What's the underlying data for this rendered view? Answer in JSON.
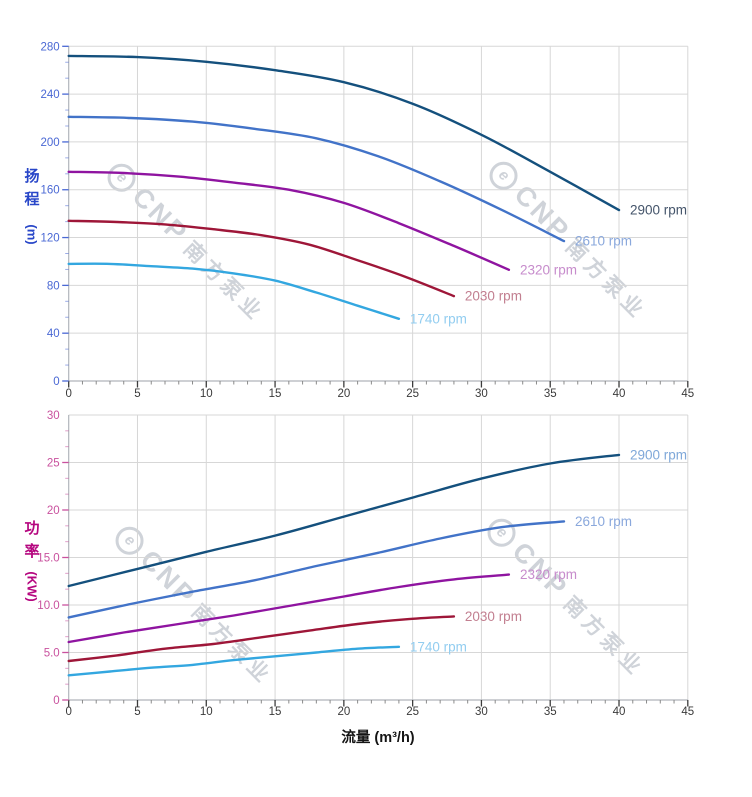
{
  "watermark": {
    "logo_glyph": "e",
    "brand": "CNP",
    "company": "南方泵业",
    "color": "#cfd3d9"
  },
  "chart_data": [
    {
      "type": "line",
      "title": "",
      "ylabel_cn": "扬程",
      "ylabel_unit": "(m)",
      "xlim": [
        0,
        45
      ],
      "ylim": [
        0,
        280
      ],
      "x_major": 5,
      "x_minor": 1,
      "y_major": 40,
      "y_minor": 13.3333,
      "grid": true,
      "x_tick_labels": [
        "0",
        "5",
        "10",
        "15",
        "20",
        "25",
        "30",
        "35",
        "40",
        "45"
      ],
      "y_tick_labels": [
        "0",
        "40",
        "80",
        "120",
        "160",
        "200",
        "240",
        "280"
      ],
      "axis_color": "#b0b5bb",
      "x_tick_color": "#3c3c3c",
      "y_tick_color": "#4a68d4",
      "y_title_color": "#2846c8",
      "series": [
        {
          "name": "2900 rpm",
          "color": "#14507d",
          "label_color": "#44546a",
          "points": [
            [
              0,
              272
            ],
            [
              5,
              271
            ],
            [
              10,
              267
            ],
            [
              15,
              260
            ],
            [
              20,
              250
            ],
            [
              25,
              232
            ],
            [
              30,
              206
            ],
            [
              35,
              175
            ],
            [
              40,
              143
            ]
          ]
        },
        {
          "name": "2610 rpm",
          "color": "#4273c8",
          "label_color": "#8aa8dc",
          "points": [
            [
              0,
              221
            ],
            [
              4.5,
              220
            ],
            [
              9,
              217
            ],
            [
              13.5,
              211
            ],
            [
              18,
              203
            ],
            [
              22.5,
              188
            ],
            [
              27,
              167
            ],
            [
              31.5,
              143
            ],
            [
              36,
              117
            ]
          ]
        },
        {
          "name": "2320 rpm",
          "color": "#8f14a0",
          "label_color": "#c78ccc",
          "points": [
            [
              0,
              175
            ],
            [
              4,
              174
            ],
            [
              8,
              171
            ],
            [
              12,
              166
            ],
            [
              16,
              160
            ],
            [
              20,
              149
            ],
            [
              24,
              132
            ],
            [
              28,
              113
            ],
            [
              32,
              93
            ]
          ]
        },
        {
          "name": "2030 rpm",
          "color": "#9e1638",
          "label_color": "#c27f90",
          "points": [
            [
              0,
              134
            ],
            [
              3.5,
              133
            ],
            [
              7,
              131
            ],
            [
              10.5,
              127
            ],
            [
              14,
              122
            ],
            [
              17.5,
              114
            ],
            [
              21,
              101
            ],
            [
              24.5,
              87
            ],
            [
              28,
              71
            ]
          ]
        },
        {
          "name": "1740 rpm",
          "color": "#33a7e0",
          "label_color": "#92cdf0",
          "points": [
            [
              0,
              98
            ],
            [
              3,
              98
            ],
            [
              6,
              96
            ],
            [
              9,
              94
            ],
            [
              12,
              90
            ],
            [
              15,
              84
            ],
            [
              18,
              74
            ],
            [
              21,
              63
            ],
            [
              24,
              52
            ]
          ]
        }
      ]
    },
    {
      "type": "line",
      "title": "",
      "ylabel_cn": "功率",
      "ylabel_unit": "(KW)",
      "xlabel": "流量 (m³/h)",
      "xlim": [
        0,
        45
      ],
      "ylim": [
        0,
        30
      ],
      "x_major": 5,
      "x_minor": 1,
      "y_major": 5,
      "y_minor": 1.6667,
      "grid": true,
      "x_tick_labels": [
        "0",
        "5",
        "10",
        "15",
        "20",
        "25",
        "30",
        "35",
        "40",
        "45"
      ],
      "y_tick_labels": [
        "0",
        "5.0",
        "10.0",
        "15.0",
        "20",
        "25",
        "30"
      ],
      "axis_color": "#b0b5bb",
      "x_tick_color": "#3c3c3c",
      "y_tick_color": "#c9519e",
      "y_title_color": "#b5067f",
      "series": [
        {
          "name": "2900 rpm",
          "color": "#14507d",
          "label_color": "#7fa8d9",
          "points": [
            [
              0,
              12
            ],
            [
              5,
              13.8
            ],
            [
              10,
              15.6
            ],
            [
              15,
              17.3
            ],
            [
              20,
              19.3
            ],
            [
              25,
              21.3
            ],
            [
              30,
              23.3
            ],
            [
              35,
              24.9
            ],
            [
              40,
              25.8
            ]
          ]
        },
        {
          "name": "2610 rpm",
          "color": "#4273c8",
          "label_color": "#8aa8dc",
          "points": [
            [
              0,
              8.7
            ],
            [
              4.5,
              10.1
            ],
            [
              9,
              11.4
            ],
            [
              13.5,
              12.6
            ],
            [
              18,
              14.1
            ],
            [
              22.5,
              15.5
            ],
            [
              27,
              17
            ],
            [
              31.5,
              18.2
            ],
            [
              36,
              18.8
            ]
          ]
        },
        {
          "name": "2320 rpm",
          "color": "#8f14a0",
          "label_color": "#c78ccc",
          "points": [
            [
              0,
              6.1
            ],
            [
              4,
              7.1
            ],
            [
              8,
              8
            ],
            [
              12,
              8.9
            ],
            [
              16,
              9.9
            ],
            [
              20,
              10.9
            ],
            [
              24,
              11.9
            ],
            [
              28,
              12.7
            ],
            [
              32,
              13.2
            ]
          ]
        },
        {
          "name": "2030 rpm",
          "color": "#9e1638",
          "label_color": "#c27f90",
          "points": [
            [
              0,
              4.1
            ],
            [
              3.5,
              4.7
            ],
            [
              7,
              5.4
            ],
            [
              10.5,
              5.9
            ],
            [
              14,
              6.6
            ],
            [
              17.5,
              7.3
            ],
            [
              21,
              8
            ],
            [
              24.5,
              8.5
            ],
            [
              28,
              8.8
            ]
          ]
        },
        {
          "name": "1740 rpm",
          "color": "#33a7e0",
          "label_color": "#92cdf0",
          "points": [
            [
              0,
              2.6
            ],
            [
              3,
              3
            ],
            [
              6,
              3.4
            ],
            [
              9,
              3.7
            ],
            [
              12,
              4.2
            ],
            [
              15,
              4.6
            ],
            [
              18,
              5
            ],
            [
              21,
              5.4
            ],
            [
              24,
              5.6
            ]
          ]
        }
      ]
    }
  ]
}
